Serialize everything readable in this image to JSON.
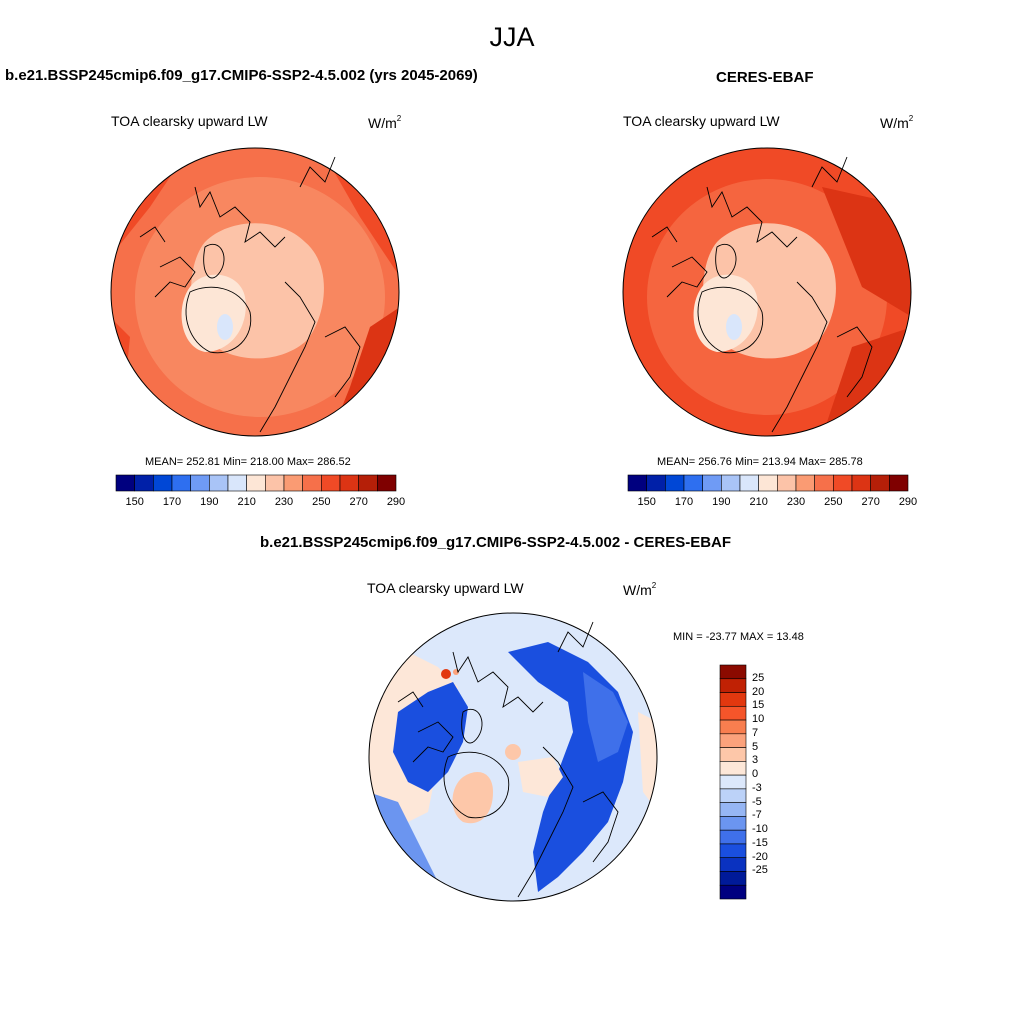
{
  "season": "JJA",
  "panels": [
    {
      "id": "model",
      "title": "b.e21.BSSP245cmip6.f09_g17.CMIP6-SSP2-4.5.002 (yrs 2045-2069)",
      "variable": "TOA clearsky upward LW",
      "units_base": "W/m",
      "units_exp": "2",
      "stats": "MEAN= 252.81  Min= 218.00  Max= 286.52"
    },
    {
      "id": "obs",
      "title": "CERES-EBAF",
      "variable": "TOA clearsky upward LW",
      "units_base": "W/m",
      "units_exp": "2",
      "stats": "MEAN= 256.76  Min= 213.94  Max= 285.78"
    }
  ],
  "diff": {
    "title": "b.e21.BSSP245cmip6.f09_g17.CMIP6-SSP2-4.5.002 - CERES-EBAF",
    "variable": "TOA clearsky upward LW",
    "units_base": "W/m",
    "units_exp": "2",
    "minmax": "MIN = -23.77 MAX =  13.48"
  },
  "colorbar_abs": {
    "colors": [
      "#00007f",
      "#0020a8",
      "#0047d6",
      "#2e6ff0",
      "#6f9bf5",
      "#a9c4f7",
      "#d9e6fb",
      "#fde6d6",
      "#fcc3a8",
      "#fa9b73",
      "#f6704a",
      "#f04a26",
      "#dc3414",
      "#b51f08",
      "#7f0000"
    ],
    "labels": [
      "150",
      "170",
      "190",
      "210",
      "230",
      "250",
      "270",
      "290"
    ]
  },
  "colorbar_diff": {
    "colors": [
      "#8b0a00",
      "#c02104",
      "#e2380f",
      "#f5552a",
      "#f87e4f",
      "#fba27c",
      "#fdc7a9",
      "#fde7d8",
      "#dce8fb",
      "#bcd2f8",
      "#96b6f4",
      "#6b95f0",
      "#3f70ea",
      "#1a4fdf",
      "#0a32c0",
      "#001a99",
      "#000080"
    ],
    "labels": [
      "25",
      "20",
      "15",
      "10",
      "7",
      "5",
      "3",
      "0",
      "-3",
      "-5",
      "-7",
      "-10",
      "-15",
      "-20",
      "-25"
    ]
  }
}
